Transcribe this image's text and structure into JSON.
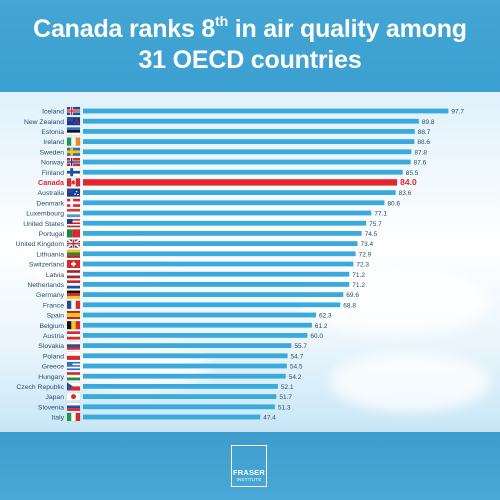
{
  "title": {
    "line1_before": "Canada ranks 8",
    "line1_sup": "th",
    "line1_after": " in air quality among",
    "line2": "31 OECD countries"
  },
  "logo": {
    "name": "FRASER",
    "sub": "INSTITUTE"
  },
  "colors": {
    "bar": "#3aa9dc",
    "highlight": "#e5262c",
    "label": "#2b4b6a",
    "background_top": "#43a6d4"
  },
  "chart_data": {
    "type": "bar",
    "orientation": "horizontal",
    "highlight": "Canada",
    "xlim": [
      0,
      100
    ],
    "grid": false,
    "categories": [
      "Iceland",
      "New Zealand",
      "Estonia",
      "Ireland",
      "Sweden",
      "Norway",
      "Finland",
      "Canada",
      "Australia",
      "Denmark",
      "Luxembourg",
      "United States",
      "Portugal",
      "United Kingdom",
      "Lithuania",
      "Switzerland",
      "Latvia",
      "Netherlands",
      "Germany",
      "France",
      "Spain",
      "Belgium",
      "Austria",
      "Slovakia",
      "Poland",
      "Greece",
      "Hungary",
      "Czech Republic",
      "Japan",
      "Slovenia",
      "Italy"
    ],
    "values": [
      97.7,
      89.8,
      88.7,
      88.6,
      87.8,
      87.6,
      85.5,
      84.0,
      83.6,
      80.6,
      77.1,
      75.7,
      74.5,
      73.4,
      72.9,
      72.3,
      71.2,
      71.2,
      69.6,
      68.8,
      62.3,
      61.2,
      60.0,
      55.7,
      54.7,
      54.5,
      54.2,
      52.1,
      51.7,
      51.3,
      47.4
    ],
    "value_labels": [
      "97.7",
      "89.8",
      "88.7",
      "88.6",
      "87.8",
      "87.6",
      "85.5",
      "84.0",
      "83.6",
      "80.6",
      "77.1",
      "75.7",
      "74.5",
      "73.4",
      "72.9",
      "72.3",
      "71.2",
      "71.2",
      "69.6",
      "68.8",
      "62.3",
      "61.2",
      "60.0",
      "55.7",
      "54.7",
      "54.5",
      "54.2",
      "52.1",
      "51.7",
      "51.3",
      "47.4"
    ],
    "flag_icons": [
      "iceland-flag-icon",
      "new-zealand-flag-icon",
      "estonia-flag-icon",
      "ireland-flag-icon",
      "sweden-flag-icon",
      "norway-flag-icon",
      "finland-flag-icon",
      "canada-flag-icon",
      "australia-flag-icon",
      "denmark-flag-icon",
      "luxembourg-flag-icon",
      "united-states-flag-icon",
      "portugal-flag-icon",
      "united-kingdom-flag-icon",
      "lithuania-flag-icon",
      "switzerland-flag-icon",
      "latvia-flag-icon",
      "netherlands-flag-icon",
      "germany-flag-icon",
      "france-flag-icon",
      "spain-flag-icon",
      "belgium-flag-icon",
      "austria-flag-icon",
      "slovakia-flag-icon",
      "poland-flag-icon",
      "greece-flag-icon",
      "hungary-flag-icon",
      "czech-republic-flag-icon",
      "japan-flag-icon",
      "slovenia-flag-icon",
      "italy-flag-icon"
    ]
  }
}
